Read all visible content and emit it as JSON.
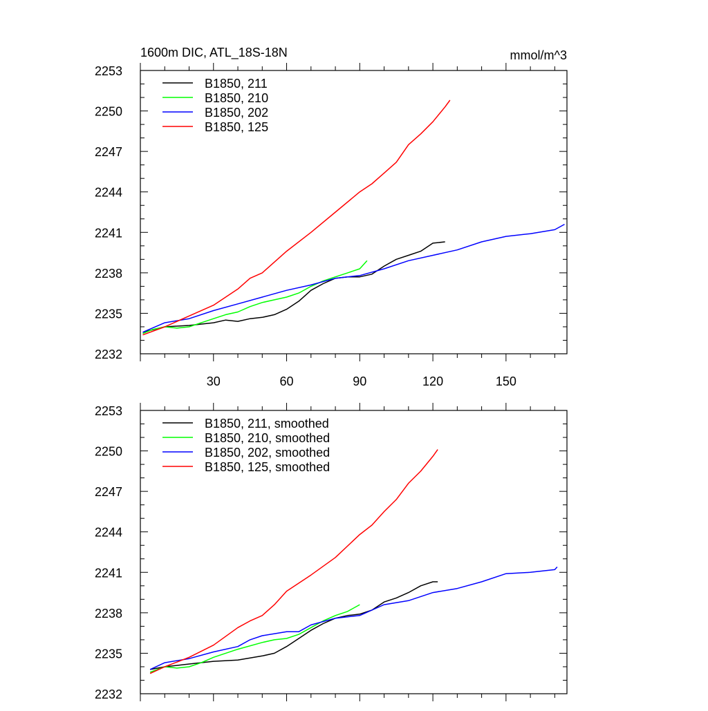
{
  "chart_data": [
    {
      "type": "line",
      "title_left": "1600m DIC, ATL_18S-18N",
      "title_right": "mmol/m^3",
      "xlabel": "",
      "ylabel": "",
      "xlim": [
        0,
        175
      ],
      "ylim": [
        2232,
        2253
      ],
      "xticks": [
        30,
        60,
        90,
        120,
        150
      ],
      "xtick_labels": [
        "30",
        "60",
        "90",
        "120",
        "150"
      ],
      "yticks": [
        2232,
        2235,
        2238,
        2241,
        2244,
        2247,
        2250,
        2253
      ],
      "ytick_labels": [
        "2232",
        "2235",
        "2238",
        "2241",
        "2244",
        "2247",
        "2250",
        "2253"
      ],
      "legend_position": "top-left",
      "series": [
        {
          "name": "B1850, 211",
          "color": "#000000",
          "x": [
            1,
            10,
            20,
            30,
            35,
            40,
            45,
            50,
            55,
            60,
            65,
            70,
            75,
            80,
            85,
            90,
            95,
            100,
            105,
            110,
            115,
            120,
            125
          ],
          "y": [
            2233.6,
            2234.0,
            2234.1,
            2234.3,
            2234.5,
            2234.4,
            2234.6,
            2234.7,
            2234.9,
            2235.3,
            2235.9,
            2236.7,
            2237.2,
            2237.6,
            2237.7,
            2237.7,
            2237.9,
            2238.5,
            2239.0,
            2239.3,
            2239.6,
            2240.2,
            2240.3
          ]
        },
        {
          "name": "B1850, 210",
          "color": "#00ff00",
          "x": [
            1,
            5,
            10,
            15,
            20,
            25,
            30,
            35,
            40,
            45,
            50,
            55,
            60,
            65,
            70,
            75,
            80,
            85,
            90,
            93
          ],
          "y": [
            2233.5,
            2233.8,
            2234.0,
            2233.9,
            2234.0,
            2234.3,
            2234.6,
            2234.9,
            2235.1,
            2235.5,
            2235.8,
            2236.0,
            2236.2,
            2236.5,
            2237.0,
            2237.4,
            2237.7,
            2238.0,
            2238.3,
            2238.9
          ]
        },
        {
          "name": "B1850, 202",
          "color": "#0000ff",
          "x": [
            1,
            10,
            20,
            30,
            40,
            50,
            60,
            70,
            80,
            90,
            100,
            110,
            120,
            130,
            140,
            150,
            160,
            170,
            174
          ],
          "y": [
            2233.6,
            2234.3,
            2234.6,
            2235.2,
            2235.7,
            2236.2,
            2236.7,
            2237.1,
            2237.6,
            2237.8,
            2238.3,
            2238.9,
            2239.3,
            2239.7,
            2240.3,
            2240.7,
            2240.9,
            2241.2,
            2241.6
          ]
        },
        {
          "name": "B1850, 125",
          "color": "#ff0000",
          "x": [
            1,
            10,
            20,
            30,
            40,
            45,
            50,
            60,
            70,
            80,
            90,
            95,
            100,
            105,
            110,
            115,
            120,
            125,
            127
          ],
          "y": [
            2233.4,
            2234.0,
            2234.8,
            2235.6,
            2236.8,
            2237.6,
            2238.0,
            2239.6,
            2241.0,
            2242.5,
            2244.0,
            2244.6,
            2245.4,
            2246.2,
            2247.5,
            2248.3,
            2249.2,
            2250.3,
            2250.8
          ]
        }
      ]
    },
    {
      "type": "line",
      "title_left": "",
      "title_right": "",
      "xlabel": "",
      "ylabel": "",
      "xlim": [
        0,
        175
      ],
      "ylim": [
        2232,
        2253
      ],
      "xticks": [
        30,
        60,
        90,
        120,
        150
      ],
      "xtick_labels": [],
      "yticks": [
        2232,
        2235,
        2238,
        2241,
        2244,
        2247,
        2250,
        2253
      ],
      "ytick_labels": [
        "2232",
        "2235",
        "2238",
        "2241",
        "2244",
        "2247",
        "2250",
        "2253"
      ],
      "legend_position": "top-left",
      "series": [
        {
          "name": "B1850, 211, smoothed",
          "color": "#000000",
          "x": [
            4,
            10,
            20,
            30,
            40,
            50,
            55,
            60,
            65,
            70,
            75,
            80,
            85,
            90,
            95,
            100,
            105,
            110,
            115,
            120,
            122
          ],
          "y": [
            2233.8,
            2234.0,
            2234.2,
            2234.4,
            2234.5,
            2234.8,
            2235.0,
            2235.5,
            2236.1,
            2236.7,
            2237.2,
            2237.6,
            2237.8,
            2237.9,
            2238.2,
            2238.8,
            2239.1,
            2239.5,
            2240.0,
            2240.3,
            2240.3
          ]
        },
        {
          "name": "B1850, 210, smoothed",
          "color": "#00ff00",
          "x": [
            4,
            10,
            15,
            20,
            25,
            30,
            40,
            50,
            55,
            60,
            65,
            70,
            75,
            80,
            85,
            90
          ],
          "y": [
            2233.6,
            2234.0,
            2233.9,
            2234.0,
            2234.3,
            2234.7,
            2235.3,
            2235.8,
            2236.0,
            2236.1,
            2236.4,
            2236.9,
            2237.4,
            2237.8,
            2238.1,
            2238.6
          ]
        },
        {
          "name": "B1850, 202, smoothed",
          "color": "#0000ff",
          "x": [
            4,
            10,
            20,
            30,
            40,
            45,
            50,
            60,
            65,
            70,
            80,
            90,
            95,
            100,
            110,
            120,
            130,
            140,
            150,
            160,
            170,
            171
          ],
          "y": [
            2233.8,
            2234.3,
            2234.6,
            2235.1,
            2235.5,
            2236.0,
            2236.3,
            2236.6,
            2236.6,
            2237.1,
            2237.6,
            2237.8,
            2238.2,
            2238.6,
            2238.9,
            2239.5,
            2239.8,
            2240.3,
            2240.9,
            2241.0,
            2241.2,
            2241.4
          ]
        },
        {
          "name": "B1850, 125, smoothed",
          "color": "#ff0000",
          "x": [
            4,
            10,
            20,
            30,
            40,
            45,
            50,
            55,
            60,
            70,
            80,
            90,
            95,
            100,
            105,
            110,
            115,
            120,
            122
          ],
          "y": [
            2233.5,
            2234.0,
            2234.7,
            2235.6,
            2236.9,
            2237.4,
            2237.8,
            2238.6,
            2239.6,
            2240.8,
            2242.1,
            2243.8,
            2244.5,
            2245.5,
            2246.4,
            2247.6,
            2248.5,
            2249.6,
            2250.1
          ]
        }
      ]
    }
  ]
}
